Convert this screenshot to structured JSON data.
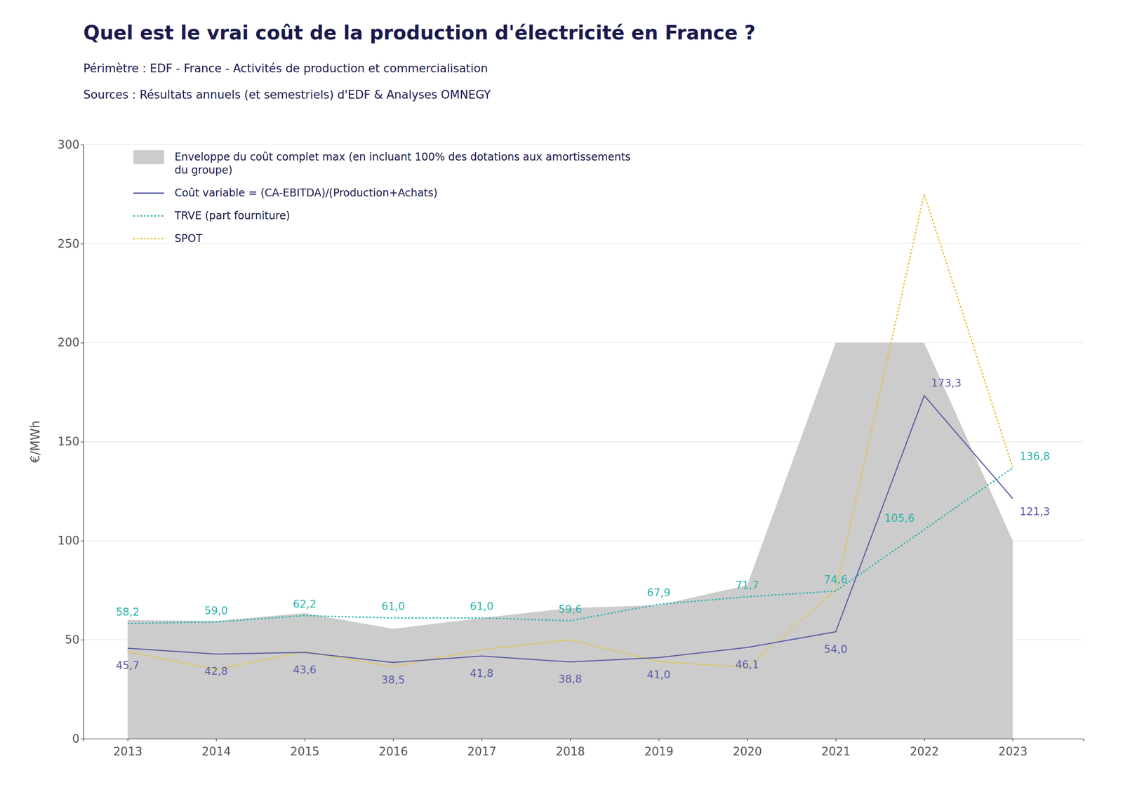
{
  "chart_data": {
    "type": "line",
    "title": "Quel est le vrai coût de la production d'électricité en France ?",
    "subtitles": [
      "Périmètre : EDF - France - Activités de production et commercialisation",
      "Sources : Résultats annuels (et semestriels) d'EDF & Analyses OMNEGY"
    ],
    "ylabel": "€/MWh",
    "x": [
      2013,
      2014,
      2015,
      2016,
      2017,
      2018,
      2019,
      2020,
      2021,
      2022,
      2023
    ],
    "xlim": [
      2012.5,
      2023.8
    ],
    "xticks": [
      2013,
      2014,
      2015,
      2016,
      2017,
      2018,
      2019,
      2020,
      2021,
      2022,
      2023
    ],
    "ylim": [
      0,
      300
    ],
    "yticks": [
      0,
      50,
      100,
      150,
      200,
      250,
      300
    ],
    "grid": "y",
    "legend": "upper left",
    "series": [
      {
        "name": "Enveloppe du coût complet max (en incluant 100% des dotations aux amortissements\ndu groupe)",
        "type": "area",
        "color": "#cccccc",
        "values": [
          60.0,
          59.5,
          63.5,
          55.5,
          61.0,
          66.0,
          67.5,
          77.5,
          200.0,
          200.0,
          100.0
        ]
      },
      {
        "name": "Coût variable = (CA-EBITDA)/(Production+Achats)",
        "type": "line",
        "color": "#5b5ea6",
        "line_style": "solid",
        "data_labels": true,
        "values": [
          45.7,
          42.8,
          43.6,
          38.5,
          41.8,
          38.8,
          41.0,
          46.1,
          54.0,
          173.3,
          121.3
        ],
        "value_labels": [
          "45,7",
          "42,8",
          "43,6",
          "38,5",
          "41,8",
          "38,8",
          "41,0",
          "46,1",
          "54,0",
          "173,3",
          "121,3"
        ]
      },
      {
        "name": "TRVE (part fourniture)",
        "type": "line",
        "color": "#2bb5ad",
        "line_style": "dotted",
        "data_labels": true,
        "values": [
          58.2,
          59.0,
          62.2,
          61.0,
          61.0,
          59.6,
          67.9,
          71.7,
          74.6,
          105.6,
          136.8
        ],
        "value_labels": [
          "58,2",
          "59,0",
          "62,2",
          "61,0",
          "61,0",
          "59,6",
          "67,9",
          "71,7",
          "74,6",
          "105,6",
          "136,8"
        ]
      },
      {
        "name": "SPOT",
        "type": "line",
        "color": "#e8c030",
        "line_style": "dotted",
        "values": [
          44.0,
          35.0,
          44.0,
          36.5,
          45.0,
          50.0,
          39.0,
          36.0,
          75.0,
          275.0,
          137.0
        ]
      }
    ]
  }
}
